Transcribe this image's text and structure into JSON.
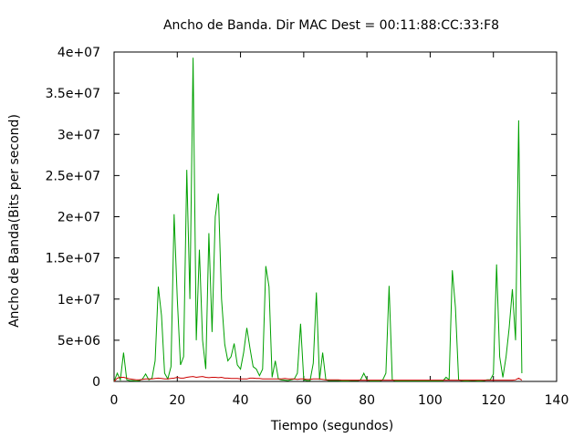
{
  "chart_data": {
    "type": "line",
    "title": "Ancho de Banda. Dir MAC Dest = 00:11:88:CC:33:F8",
    "xlabel": "Tiempo (segundos)",
    "ylabel": "Ancho de Banda(Bits per second)",
    "xlim": [
      0,
      140
    ],
    "ylim": [
      0,
      40000000
    ],
    "xticks": [
      0,
      20,
      40,
      60,
      80,
      100,
      120,
      140
    ],
    "xtick_labels": [
      "0",
      "20",
      "40",
      "60",
      "80",
      "100",
      "120",
      "140"
    ],
    "yticks": [
      0,
      5000000,
      10000000,
      15000000,
      20000000,
      25000000,
      30000000,
      35000000,
      40000000
    ],
    "ytick_labels": [
      "0",
      "5e+06",
      "1e+07",
      "1.5e+07",
      "2e+07",
      "2.5e+07",
      "3e+07",
      "3.5e+07",
      "4e+07"
    ],
    "grid": false,
    "legend": "none",
    "series": [
      {
        "color": "#00a000",
        "x": [
          0,
          1,
          2,
          3,
          4,
          5,
          6,
          7,
          8,
          9,
          10,
          11,
          12,
          13,
          14,
          15,
          16,
          17,
          18,
          19,
          20,
          21,
          22,
          23,
          24,
          25,
          26,
          27,
          28,
          29,
          30,
          31,
          32,
          33,
          34,
          35,
          36,
          37,
          38,
          39,
          40,
          41,
          42,
          43,
          44,
          45,
          46,
          47,
          48,
          49,
          50,
          51,
          52,
          53,
          54,
          55,
          56,
          57,
          58,
          59,
          60,
          61,
          62,
          63,
          64,
          65,
          66,
          67,
          68,
          69,
          70,
          71,
          72,
          73,
          74,
          75,
          76,
          77,
          78,
          79,
          80,
          81,
          82,
          83,
          84,
          85,
          86,
          87,
          88,
          89,
          90,
          91,
          92,
          93,
          94,
          95,
          96,
          97,
          98,
          99,
          100,
          101,
          102,
          103,
          104,
          105,
          106,
          107,
          108,
          109,
          110,
          111,
          112,
          113,
          114,
          115,
          116,
          117,
          118,
          119,
          120,
          121,
          122,
          123,
          124,
          125,
          126,
          127,
          128,
          129
        ],
        "values": [
          0,
          1000000,
          200000,
          3500000,
          200000,
          100000,
          100000,
          50000,
          100000,
          300000,
          900000,
          200000,
          400000,
          2500000,
          11500000,
          8000000,
          1000000,
          300000,
          1800000,
          20300000,
          10000000,
          2000000,
          3000000,
          25700000,
          10000000,
          39300000,
          5000000,
          16000000,
          5000000,
          1500000,
          18000000,
          6000000,
          20000000,
          22800000,
          10000000,
          4500000,
          2500000,
          3000000,
          4600000,
          2000000,
          1500000,
          3500000,
          6500000,
          4000000,
          1800000,
          1500000,
          700000,
          1500000,
          14000000,
          11500000,
          500000,
          2500000,
          300000,
          200000,
          150000,
          100000,
          200000,
          300000,
          1000000,
          7000000,
          200000,
          100000,
          100000,
          2200000,
          10800000,
          200000,
          3500000,
          200000,
          100000,
          100000,
          100000,
          100000,
          50000,
          50000,
          50000,
          100000,
          100000,
          100000,
          200000,
          1000000,
          200000,
          50000,
          50000,
          50000,
          50000,
          200000,
          1000000,
          11600000,
          200000,
          50000,
          50000,
          50000,
          50000,
          50000,
          50000,
          50000,
          50000,
          50000,
          50000,
          50000,
          50000,
          50000,
          50000,
          50000,
          50000,
          500000,
          200000,
          13500000,
          9000000,
          200000,
          100000,
          50000,
          50000,
          100000,
          100000,
          50000,
          50000,
          100000,
          200000,
          200000,
          900000,
          14200000,
          3000000,
          500000,
          3000000,
          6500000,
          11200000,
          5000000,
          31700000,
          1000000
        ]
      },
      {
        "color": "#cc0000",
        "x": [
          0,
          1,
          2,
          3,
          4,
          5,
          6,
          7,
          8,
          9,
          10,
          11,
          12,
          13,
          14,
          15,
          16,
          17,
          18,
          19,
          20,
          21,
          22,
          23,
          24,
          25,
          26,
          27,
          28,
          29,
          30,
          31,
          32,
          33,
          34,
          35,
          36,
          37,
          38,
          39,
          40,
          41,
          42,
          43,
          44,
          45,
          46,
          47,
          48,
          49,
          50,
          51,
          52,
          53,
          54,
          55,
          56,
          57,
          58,
          59,
          60,
          61,
          62,
          63,
          64,
          65,
          66,
          67,
          68,
          69,
          70,
          71,
          72,
          73,
          74,
          75,
          76,
          77,
          78,
          79,
          80,
          81,
          82,
          83,
          84,
          85,
          86,
          87,
          88,
          89,
          90,
          91,
          92,
          93,
          94,
          95,
          96,
          97,
          98,
          99,
          100,
          101,
          102,
          103,
          104,
          105,
          106,
          107,
          108,
          109,
          110,
          111,
          112,
          113,
          114,
          115,
          116,
          117,
          118,
          119,
          120,
          121,
          122,
          123,
          124,
          125,
          126,
          127,
          128,
          129
        ],
        "values": [
          0,
          400000,
          500000,
          500000,
          400000,
          300000,
          250000,
          200000,
          200000,
          250000,
          300000,
          300000,
          300000,
          350000,
          400000,
          350000,
          300000,
          300000,
          350000,
          400000,
          500000,
          400000,
          400000,
          500000,
          550000,
          600000,
          500000,
          550000,
          600000,
          500000,
          450000,
          500000,
          500000,
          450000,
          500000,
          400000,
          400000,
          350000,
          350000,
          350000,
          300000,
          300000,
          300000,
          400000,
          400000,
          350000,
          350000,
          300000,
          300000,
          300000,
          300000,
          300000,
          300000,
          300000,
          350000,
          300000,
          300000,
          300000,
          250000,
          300000,
          300000,
          250000,
          250000,
          300000,
          300000,
          300000,
          250000,
          200000,
          200000,
          200000,
          200000,
          200000,
          150000,
          150000,
          150000,
          150000,
          150000,
          150000,
          150000,
          150000,
          150000,
          150000,
          150000,
          150000,
          150000,
          150000,
          150000,
          150000,
          150000,
          150000,
          150000,
          150000,
          150000,
          150000,
          150000,
          150000,
          150000,
          150000,
          150000,
          150000,
          150000,
          150000,
          150000,
          150000,
          150000,
          150000,
          150000,
          150000,
          150000,
          150000,
          150000,
          150000,
          150000,
          150000,
          150000,
          150000,
          150000,
          150000,
          150000,
          150000,
          150000,
          150000,
          150000,
          150000,
          150000,
          150000,
          150000,
          200000,
          400000,
          150000
        ]
      }
    ]
  }
}
